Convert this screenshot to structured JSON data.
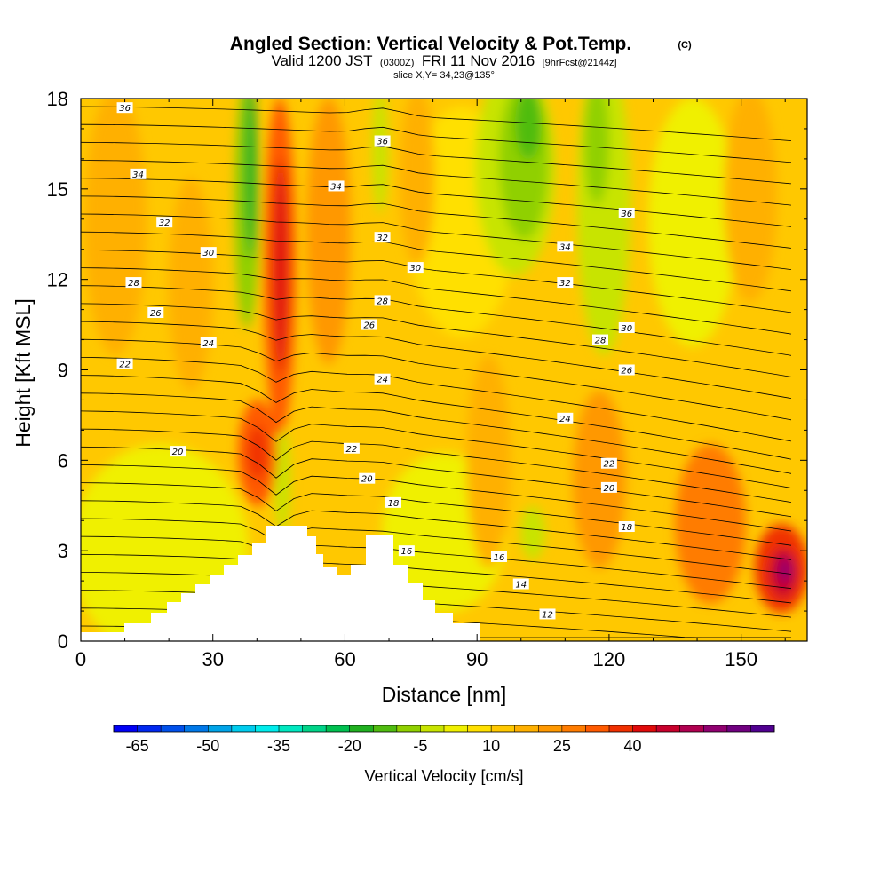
{
  "chart_data": {
    "type": "heatmap",
    "title": {
      "main": "Angled Section: Vertical Velocity & Pot.Temp.",
      "mark": "(C)",
      "valid_a": "Valid 1200 JST",
      "valid_b": "(0300Z)",
      "valid_c": "FRI 11 Nov 2016",
      "valid_d": "[9hrFcst@2144z]",
      "slice": "slice X,Y= 34,23@135°"
    },
    "xlabel": "Distance [nm]",
    "ylabel": "Height [Kft MSL]",
    "xlim": [
      0,
      165
    ],
    "ylim": [
      0,
      18
    ],
    "x_ticks": [
      0,
      30,
      60,
      90,
      120,
      150
    ],
    "y_ticks": [
      0,
      3,
      6,
      9,
      12,
      15,
      18
    ],
    "colorbar": {
      "label": "Vertical Velocity [cm/s]",
      "tick_labels": [
        "-65",
        "-50",
        "-35",
        "-20",
        "-5",
        "10",
        "25",
        "40"
      ],
      "levels_min": -70,
      "level_step": 5,
      "colors": [
        "#0000f5",
        "#0028f0",
        "#0050eb",
        "#0078e8",
        "#00a4e8",
        "#00ccee",
        "#00ecec",
        "#00e8c0",
        "#00d488",
        "#00c050",
        "#20b020",
        "#50bc10",
        "#90d000",
        "#c8e400",
        "#f0f000",
        "#ffe000",
        "#ffc800",
        "#ffb000",
        "#ff9800",
        "#ff7c00",
        "#ff5a00",
        "#f03000",
        "#e00a0a",
        "#c8002c",
        "#b00050",
        "#900070",
        "#700080",
        "#500090"
      ]
    },
    "theta_contour_labels": [
      {
        "value": "36",
        "x": 10,
        "y": 17.7
      },
      {
        "value": "36",
        "x": 68.5,
        "y": 16.6
      },
      {
        "value": "36",
        "x": 124,
        "y": 14.2
      },
      {
        "value": "34",
        "x": 13,
        "y": 15.5
      },
      {
        "value": "34",
        "x": 58,
        "y": 15.1
      },
      {
        "value": "34",
        "x": 110,
        "y": 13.1
      },
      {
        "value": "32",
        "x": 19,
        "y": 13.9
      },
      {
        "value": "32",
        "x": 68.5,
        "y": 13.4
      },
      {
        "value": "32",
        "x": 110,
        "y": 11.9
      },
      {
        "value": "30",
        "x": 29,
        "y": 12.9
      },
      {
        "value": "30",
        "x": 76,
        "y": 12.4
      },
      {
        "value": "30",
        "x": 124,
        "y": 10.4
      },
      {
        "value": "28",
        "x": 12,
        "y": 11.9
      },
      {
        "value": "28",
        "x": 68.5,
        "y": 11.3
      },
      {
        "value": "28",
        "x": 118,
        "y": 10.0
      },
      {
        "value": "26",
        "x": 17,
        "y": 10.9
      },
      {
        "value": "26",
        "x": 65.5,
        "y": 10.5
      },
      {
        "value": "26",
        "x": 124,
        "y": 9.0
      },
      {
        "value": "24",
        "x": 29,
        "y": 9.9
      },
      {
        "value": "24",
        "x": 68.5,
        "y": 8.7
      },
      {
        "value": "24",
        "x": 110,
        "y": 7.4
      },
      {
        "value": "22",
        "x": 10,
        "y": 9.2
      },
      {
        "value": "22",
        "x": 61.5,
        "y": 6.4
      },
      {
        "value": "22",
        "x": 120,
        "y": 5.9
      },
      {
        "value": "20",
        "x": 22,
        "y": 6.3
      },
      {
        "value": "20",
        "x": 65,
        "y": 5.4
      },
      {
        "value": "20",
        "x": 120,
        "y": 5.1
      },
      {
        "value": "18",
        "x": 71,
        "y": 4.6
      },
      {
        "value": "18",
        "x": 124,
        "y": 3.8
      },
      {
        "value": "16",
        "x": 74,
        "y": 3.0
      },
      {
        "value": "16",
        "x": 95,
        "y": 2.8
      },
      {
        "value": "14",
        "x": 100,
        "y": 1.9
      },
      {
        "value": "12",
        "x": 106,
        "y": 0.9
      }
    ]
  }
}
